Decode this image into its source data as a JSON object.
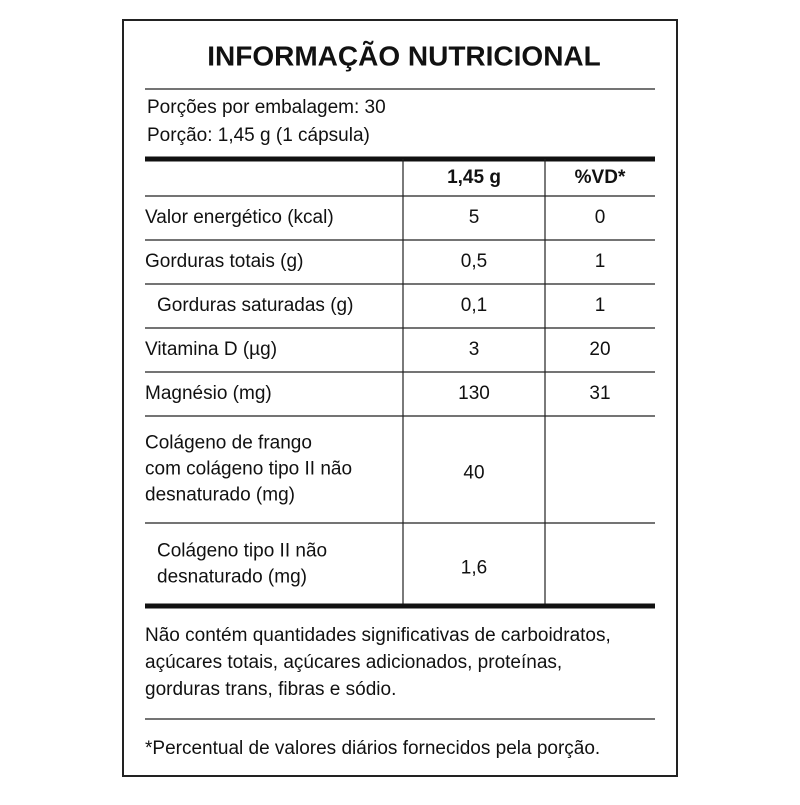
{
  "title": "INFORMAÇÃO NUTRICIONAL",
  "serving": [
    "Porções por embalagem: 30",
    "Porção: 1,45 g (1 cápsula)"
  ],
  "table": {
    "header": [
      "1,45 g",
      "%VD*"
    ],
    "rows": [
      {
        "label": [
          "Valor energético (kcal)"
        ],
        "amount": "5",
        "dv": "0"
      },
      {
        "label": [
          "Gorduras totais (g)"
        ],
        "amount": "0,5",
        "dv": "1"
      },
      {
        "label": [
          "Gorduras saturadas (g)"
        ],
        "sub": true,
        "amount": "0,1",
        "dv": "1"
      },
      {
        "label": [
          "Vitamina D (µg)"
        ],
        "amount": "3",
        "dv": "20"
      },
      {
        "label": [
          "Magnésio (mg)"
        ],
        "amount": "130",
        "dv": "31"
      },
      {
        "label": [
          "Colágeno de frango",
          "com colágeno tipo II não",
          "desnaturado (mg)"
        ],
        "amount": "40"
      },
      {
        "label": [
          "Colágeno tipo II não",
          "desnaturado (mg)"
        ],
        "sub": true,
        "amount": "1,6"
      }
    ]
  },
  "footer": [
    "Não contém quantidades significativas de carboidratos,",
    "açúcares totais, açúcares adicionados, proteínas,",
    "gorduras trans, fibras e sódio."
  ],
  "footnote": "*Percentual de valores diários fornecidos pela porção."
}
